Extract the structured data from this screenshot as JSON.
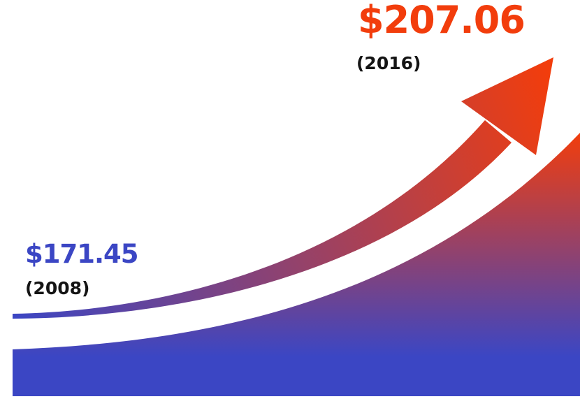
{
  "colors": {
    "start": "#3b46c4",
    "end": "#f23d0c",
    "text_dark": "#141414"
  },
  "chart_data": {
    "type": "area",
    "x": [
      "2008",
      "2016"
    ],
    "values": [
      171.45,
      207.06
    ],
    "annotations": [
      {
        "value_label": "$171.45",
        "year_label": "(2008)"
      },
      {
        "value_label": "$207.06",
        "year_label": "(2016)"
      }
    ],
    "axis": "none",
    "grid": false,
    "legend": "none"
  }
}
